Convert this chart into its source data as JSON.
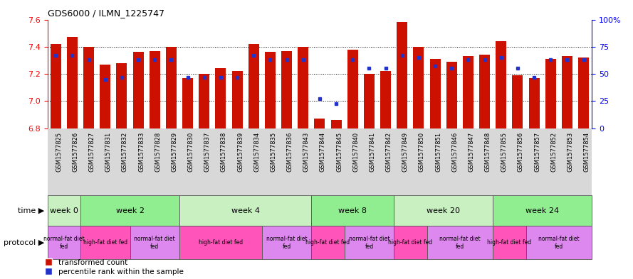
{
  "title": "GDS6000 / ILMN_1225747",
  "samples": [
    "GSM1577825",
    "GSM1577826",
    "GSM1577827",
    "GSM1577831",
    "GSM1577832",
    "GSM1577833",
    "GSM1577828",
    "GSM1577829",
    "GSM1577830",
    "GSM1577837",
    "GSM1577838",
    "GSM1577839",
    "GSM1577834",
    "GSM1577835",
    "GSM1577836",
    "GSM1577843",
    "GSM1577844",
    "GSM1577845",
    "GSM1577840",
    "GSM1577841",
    "GSM1577842",
    "GSM1577849",
    "GSM1577850",
    "GSM1577851",
    "GSM1577846",
    "GSM1577847",
    "GSM1577848",
    "GSM1577855",
    "GSM1577856",
    "GSM1577857",
    "GSM1577852",
    "GSM1577853",
    "GSM1577854"
  ],
  "red_values": [
    7.42,
    7.47,
    7.4,
    7.27,
    7.28,
    7.36,
    7.37,
    7.4,
    7.17,
    7.2,
    7.24,
    7.22,
    7.42,
    7.36,
    7.37,
    7.4,
    6.87,
    6.86,
    7.38,
    7.2,
    7.22,
    7.58,
    7.4,
    7.31,
    7.29,
    7.33,
    7.34,
    7.44,
    7.19,
    7.17,
    7.31,
    7.33,
    7.32
  ],
  "blue_values": [
    67,
    67,
    63,
    45,
    47,
    63,
    63,
    63,
    47,
    47,
    47,
    47,
    67,
    63,
    63,
    63,
    27,
    23,
    63,
    55,
    55,
    67,
    65,
    57,
    55,
    63,
    63,
    65,
    55,
    47,
    63,
    63,
    63
  ],
  "ylim_left": [
    6.8,
    7.6
  ],
  "ylim_right": [
    0,
    100
  ],
  "yticks_left": [
    6.8,
    7.0,
    7.2,
    7.4,
    7.6
  ],
  "yticks_right": [
    0,
    25,
    50,
    75,
    100
  ],
  "ytick_labels_right": [
    "0",
    "25",
    "50",
    "75",
    "100%"
  ],
  "bar_color": "#cc1100",
  "dot_color": "#2233cc",
  "gridline_yticks": [
    7.0,
    7.2,
    7.4
  ],
  "time_groups": [
    {
      "label": "week 0",
      "start": 0,
      "end": 2
    },
    {
      "label": "week 2",
      "start": 2,
      "end": 8
    },
    {
      "label": "week 4",
      "start": 8,
      "end": 16
    },
    {
      "label": "week 8",
      "start": 16,
      "end": 21
    },
    {
      "label": "week 20",
      "start": 21,
      "end": 27
    },
    {
      "label": "week 24",
      "start": 27,
      "end": 33
    }
  ],
  "time_colors": [
    "#c8f0c0",
    "#90ee90",
    "#c8f0c0",
    "#90ee90",
    "#c8f0c0",
    "#90ee90"
  ],
  "protocol_groups": [
    {
      "label": "normal-fat diet\nfed",
      "start": 0,
      "end": 2,
      "color": "#dd88ee"
    },
    {
      "label": "high-fat diet fed",
      "start": 2,
      "end": 5,
      "color": "#ff55bb"
    },
    {
      "label": "normal-fat diet\nfed",
      "start": 5,
      "end": 8,
      "color": "#dd88ee"
    },
    {
      "label": "high-fat diet fed",
      "start": 8,
      "end": 13,
      "color": "#ff55bb"
    },
    {
      "label": "normal-fat diet\nfed",
      "start": 13,
      "end": 16,
      "color": "#dd88ee"
    },
    {
      "label": "high-fat diet fed",
      "start": 16,
      "end": 18,
      "color": "#ff55bb"
    },
    {
      "label": "normal-fat diet\nfed",
      "start": 18,
      "end": 21,
      "color": "#dd88ee"
    },
    {
      "label": "high-fat diet fed",
      "start": 21,
      "end": 23,
      "color": "#ff55bb"
    },
    {
      "label": "normal-fat diet\nfed",
      "start": 23,
      "end": 27,
      "color": "#dd88ee"
    },
    {
      "label": "high-fat diet fed",
      "start": 27,
      "end": 29,
      "color": "#ff55bb"
    },
    {
      "label": "normal-fat diet\nfed",
      "start": 29,
      "end": 33,
      "color": "#dd88ee"
    }
  ],
  "xtick_bg_color": "#d8d8d8",
  "legend_labels": [
    "transformed count",
    "percentile rank within the sample"
  ],
  "legend_colors": [
    "#cc1100",
    "#2233cc"
  ]
}
